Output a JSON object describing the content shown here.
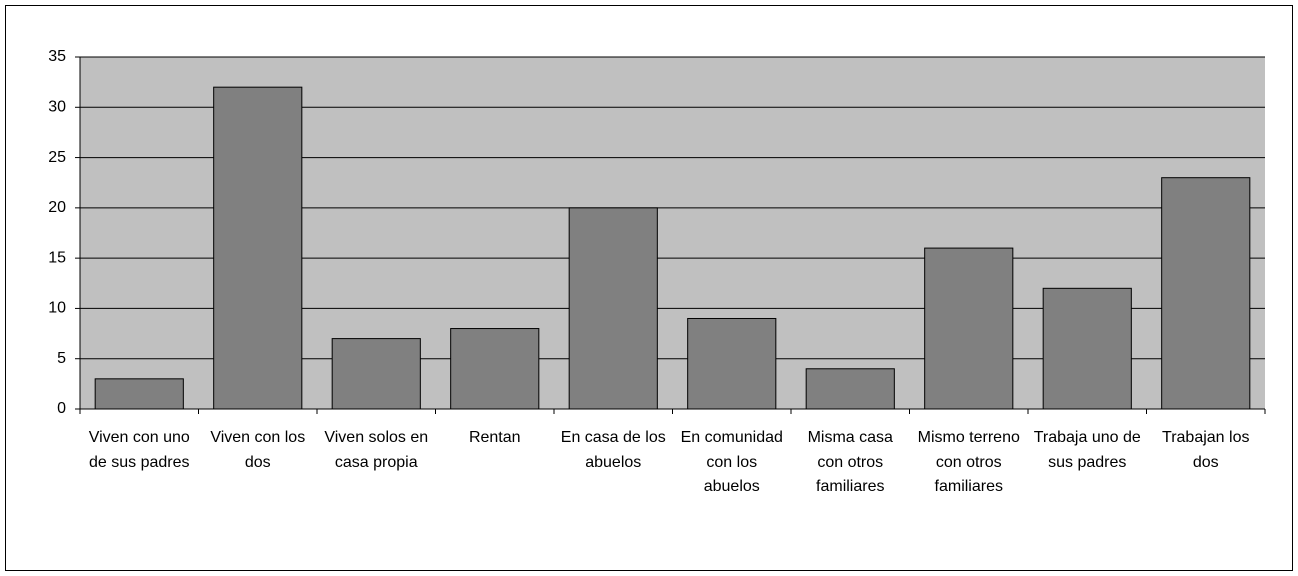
{
  "chart_data": {
    "type": "bar",
    "categories": [
      "Viven con uno de sus padres",
      "Viven con los dos",
      "Viven solos en casa propia",
      "Rentan",
      "En casa de los abuelos",
      "En comunidad con los abuelos",
      "Misma casa con otros familiares",
      "Mismo terreno con otros familiares",
      "Trabaja uno de sus padres",
      "Trabajan los dos"
    ],
    "values": [
      3,
      32,
      7,
      8,
      20,
      9,
      4,
      16,
      12,
      23
    ],
    "color": "#808080",
    "ylim": [
      0,
      35
    ],
    "yticks": [
      0,
      5,
      10,
      15,
      20,
      25,
      30,
      35
    ],
    "grid": true
  }
}
